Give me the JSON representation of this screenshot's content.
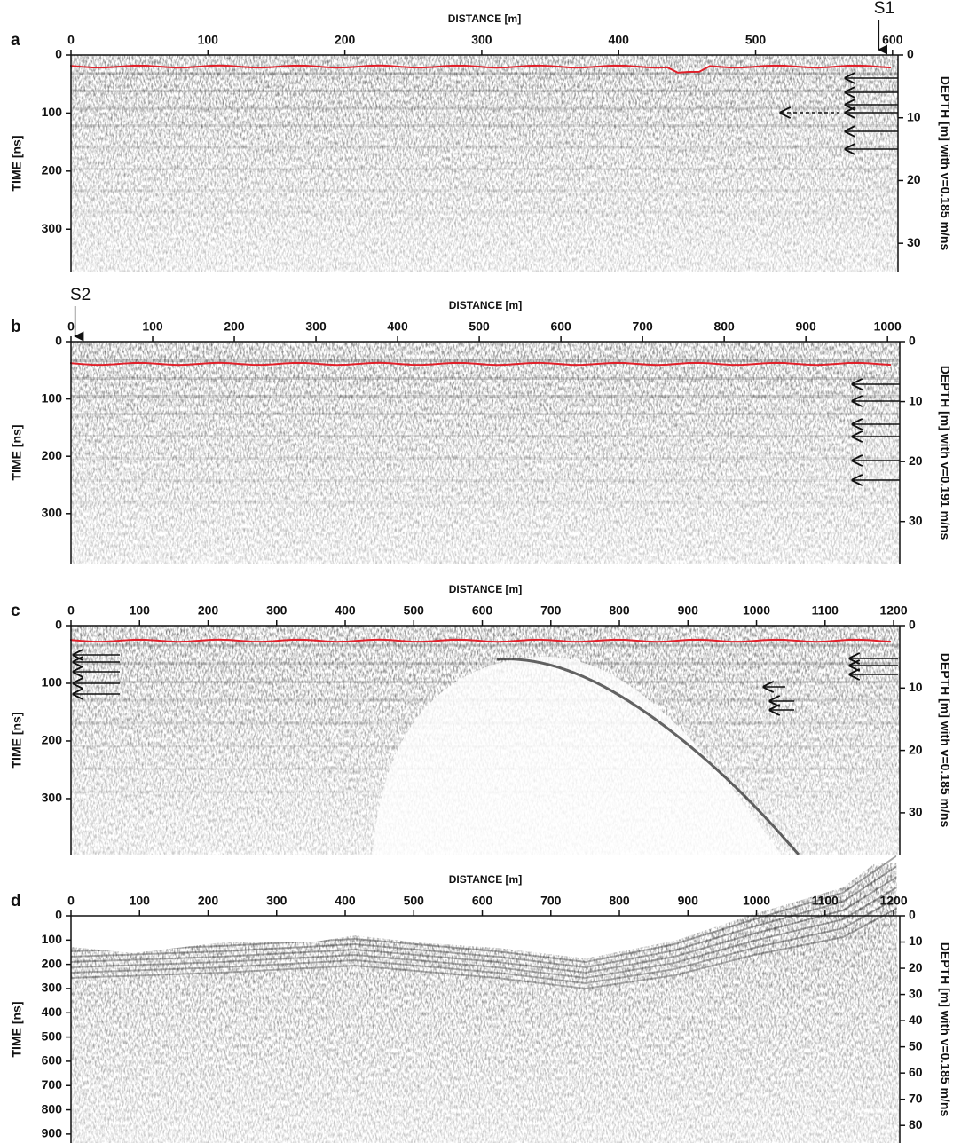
{
  "chart_data": [
    {
      "type": "radargram",
      "label": "a",
      "x_label": "DISTANCE [m]",
      "y_label": "TIME [ns]",
      "y2_label": "DEPTH [m] with v=0.185 m/ns",
      "xlim": [
        0,
        604
      ],
      "xticks": [
        0,
        100,
        200,
        300,
        400,
        500,
        600
      ],
      "ylim": [
        0,
        373
      ],
      "yticks": [
        0,
        100,
        200,
        300
      ],
      "y2lim": [
        0,
        34.5
      ],
      "y2ticks": [
        0,
        10,
        20,
        30
      ],
      "annotations": [
        {
          "text": "S1",
          "x": 590
        }
      ]
    },
    {
      "type": "radargram",
      "label": "b",
      "x_label": "DISTANCE [m]",
      "y_label": "TIME [ns]",
      "y2_label": "DEPTH [m] with v=0.191 m/ns",
      "xlim": [
        0,
        1015
      ],
      "xticks": [
        0,
        100,
        200,
        300,
        400,
        500,
        600,
        700,
        800,
        900,
        1000
      ],
      "ylim": [
        0,
        387
      ],
      "yticks": [
        0,
        100,
        200,
        300
      ],
      "y2lim": [
        0,
        37
      ],
      "y2ticks": [
        0,
        10,
        20,
        30
      ],
      "annotations": [
        {
          "text": "S2",
          "x": 5
        }
      ]
    },
    {
      "type": "radargram",
      "label": "c",
      "x_label": "DISTANCE [m]",
      "y_label": "TIME [ns]",
      "y2_label": "DEPTH [m] with v=0.185 m/ns",
      "xlim": [
        0,
        1209
      ],
      "xticks": [
        0,
        100,
        200,
        300,
        400,
        500,
        600,
        700,
        800,
        900,
        1000,
        1100,
        1200
      ],
      "ylim": [
        0,
        397
      ],
      "yticks": [
        0,
        100,
        200,
        300
      ],
      "y2lim": [
        0,
        36.7
      ],
      "y2ticks": [
        0,
        10,
        20,
        30
      ]
    },
    {
      "type": "radargram",
      "label": "d",
      "x_label": "DISTANCE [m]",
      "y_label": "TIME [ns]",
      "y2_label": "DEPTH [m] with v=0.185 m/ns",
      "xlim": [
        0,
        1209
      ],
      "xticks": [
        0,
        100,
        200,
        300,
        400,
        500,
        600,
        700,
        800,
        900,
        1000,
        1100,
        1200
      ],
      "ylim": [
        0,
        937
      ],
      "yticks": [
        0,
        100,
        200,
        300,
        400,
        500,
        600,
        700,
        800,
        900
      ],
      "y2lim": [
        0,
        86.7
      ],
      "y2ticks": [
        0,
        10,
        20,
        30,
        40,
        50,
        60,
        70,
        80
      ]
    }
  ]
}
